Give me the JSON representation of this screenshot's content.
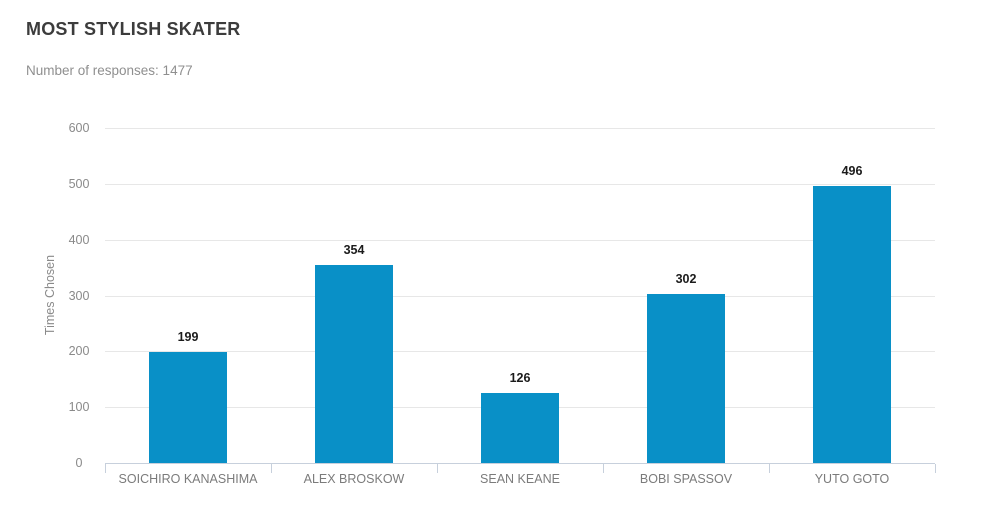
{
  "header": {
    "title": "MOST STYLISH SKATER",
    "responses_label": "Number of responses: 1477"
  },
  "chart_data": {
    "type": "bar",
    "title": "MOST STYLISH SKATER",
    "subtitle": "Number of responses: 1477",
    "categories": [
      "SOICHIRO KANASHIMA",
      "ALEX BROSKOW",
      "SEAN KEANE",
      "BOBI SPASSOV",
      "YUTO GOTO"
    ],
    "values": [
      199,
      354,
      126,
      302,
      496
    ],
    "xlabel": "",
    "ylabel": "Times Chosen",
    "ylim": [
      0,
      600
    ],
    "ytick_step": 100,
    "yticks": [
      0,
      100,
      200,
      300,
      400,
      500,
      600
    ],
    "grid": true,
    "legend": "none",
    "data_labels": true,
    "bar_color": "#0990C7"
  },
  "colors": {
    "bar": "#0990C7",
    "title_text": "#3C3C3C",
    "subtitle_text": "#8F8F8F",
    "axis_tick_text": "#8A8A8A",
    "category_text": "#7B7B7B",
    "value_label_text": "#1B1B1B",
    "gridline": "#E7E7E7",
    "axis_line": "#C7D0DC",
    "background": "#FFFFFF"
  }
}
